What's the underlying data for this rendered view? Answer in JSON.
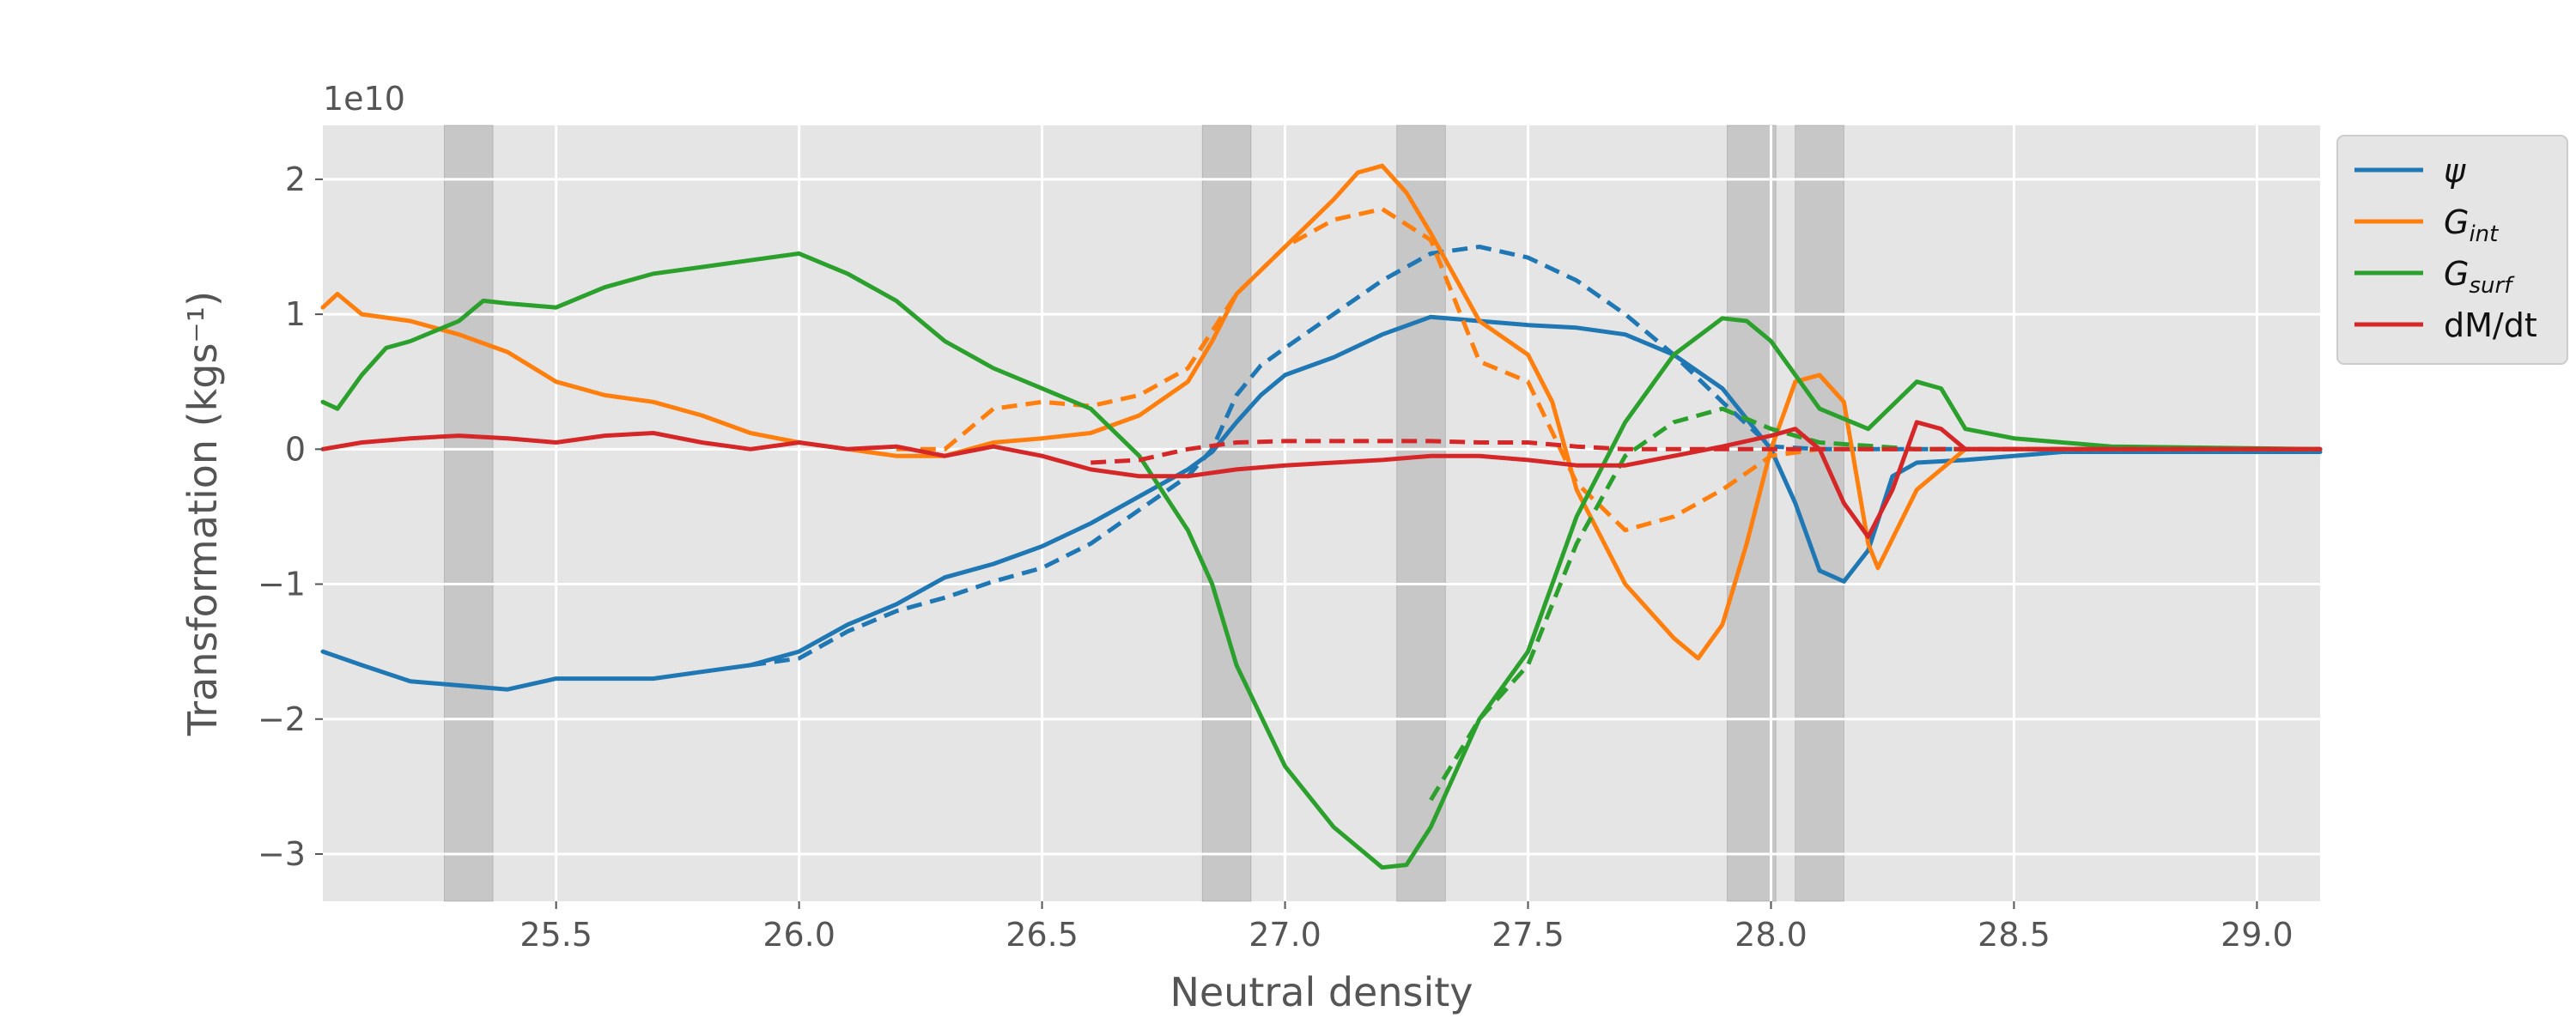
{
  "chart_data": {
    "type": "line",
    "title": "",
    "xlabel": "Neutral density",
    "ylabel": "Transformation (kgs⁻¹)",
    "offset_text": "1e10",
    "xlim": [
      25.02,
      29.13
    ],
    "ylim": [
      -3.35,
      2.4
    ],
    "x_ticks": [
      25.5,
      26.0,
      26.5,
      27.0,
      27.5,
      28.0,
      28.5,
      29.0
    ],
    "x_tick_labels": [
      "25.5",
      "26.0",
      "26.5",
      "27.0",
      "27.5",
      "28.0",
      "28.5",
      "29.0"
    ],
    "y_ticks": [
      2,
      1,
      0,
      -1,
      -2,
      -3
    ],
    "y_tick_labels": [
      "2",
      "1",
      "0",
      "−1",
      "−2",
      "−3"
    ],
    "grid": true,
    "legend_position": "outside-right",
    "shaded_bands": [
      [
        25.27,
        25.37
      ],
      [
        26.83,
        26.93
      ],
      [
        27.23,
        27.33
      ],
      [
        27.91,
        28.01
      ],
      [
        28.05,
        28.15
      ]
    ],
    "series": [
      {
        "name": "ψ",
        "color": "#1f77b4",
        "style": "solid",
        "points": [
          [
            25.02,
            -1.5
          ],
          [
            25.1,
            -1.6
          ],
          [
            25.2,
            -1.72
          ],
          [
            25.3,
            -1.75
          ],
          [
            25.4,
            -1.78
          ],
          [
            25.5,
            -1.7
          ],
          [
            25.6,
            -1.7
          ],
          [
            25.7,
            -1.7
          ],
          [
            25.8,
            -1.65
          ],
          [
            25.9,
            -1.6
          ],
          [
            26.0,
            -1.5
          ],
          [
            26.1,
            -1.3
          ],
          [
            26.2,
            -1.15
          ],
          [
            26.3,
            -0.95
          ],
          [
            26.4,
            -0.85
          ],
          [
            26.5,
            -0.72
          ],
          [
            26.6,
            -0.55
          ],
          [
            26.7,
            -0.35
          ],
          [
            26.8,
            -0.15
          ],
          [
            26.85,
            -0.02
          ],
          [
            26.9,
            0.2
          ],
          [
            26.95,
            0.4
          ],
          [
            27.0,
            0.55
          ],
          [
            27.1,
            0.68
          ],
          [
            27.2,
            0.85
          ],
          [
            27.3,
            0.98
          ],
          [
            27.4,
            0.95
          ],
          [
            27.5,
            0.92
          ],
          [
            27.6,
            0.9
          ],
          [
            27.7,
            0.85
          ],
          [
            27.8,
            0.7
          ],
          [
            27.9,
            0.45
          ],
          [
            28.0,
            0.0
          ],
          [
            28.05,
            -0.4
          ],
          [
            28.1,
            -0.9
          ],
          [
            28.15,
            -0.98
          ],
          [
            28.2,
            -0.75
          ],
          [
            28.25,
            -0.2
          ],
          [
            28.3,
            -0.1
          ],
          [
            28.4,
            -0.08
          ],
          [
            28.6,
            -0.02
          ],
          [
            29.13,
            -0.02
          ]
        ]
      },
      {
        "name": "",
        "color": "#1f77b4",
        "style": "dashed",
        "points": [
          [
            25.9,
            -1.6
          ],
          [
            26.0,
            -1.55
          ],
          [
            26.1,
            -1.35
          ],
          [
            26.2,
            -1.2
          ],
          [
            26.3,
            -1.1
          ],
          [
            26.4,
            -0.98
          ],
          [
            26.5,
            -0.88
          ],
          [
            26.6,
            -0.7
          ],
          [
            26.7,
            -0.45
          ],
          [
            26.8,
            -0.2
          ],
          [
            26.85,
            0.0
          ],
          [
            26.9,
            0.4
          ],
          [
            26.95,
            0.62
          ],
          [
            27.0,
            0.75
          ],
          [
            27.1,
            1.0
          ],
          [
            27.2,
            1.25
          ],
          [
            27.3,
            1.45
          ],
          [
            27.4,
            1.5
          ],
          [
            27.5,
            1.42
          ],
          [
            27.6,
            1.25
          ],
          [
            27.7,
            1.0
          ],
          [
            27.8,
            0.7
          ],
          [
            27.9,
            0.35
          ],
          [
            28.0,
            0.02
          ],
          [
            28.1,
            0.0
          ],
          [
            28.2,
            0.0
          ],
          [
            29.13,
            0.0
          ]
        ]
      },
      {
        "name": "Gᵢₙₜ",
        "legend_main": "G",
        "legend_sub": "int",
        "color": "#ff7f0e",
        "style": "solid",
        "points": [
          [
            25.02,
            1.05
          ],
          [
            25.05,
            1.15
          ],
          [
            25.1,
            1.0
          ],
          [
            25.2,
            0.95
          ],
          [
            25.3,
            0.85
          ],
          [
            25.4,
            0.72
          ],
          [
            25.5,
            0.5
          ],
          [
            25.6,
            0.4
          ],
          [
            25.7,
            0.35
          ],
          [
            25.8,
            0.25
          ],
          [
            25.9,
            0.12
          ],
          [
            26.0,
            0.05
          ],
          [
            26.1,
            0.0
          ],
          [
            26.2,
            -0.05
          ],
          [
            26.3,
            -0.05
          ],
          [
            26.4,
            0.05
          ],
          [
            26.5,
            0.08
          ],
          [
            26.6,
            0.12
          ],
          [
            26.7,
            0.25
          ],
          [
            26.8,
            0.5
          ],
          [
            26.85,
            0.8
          ],
          [
            26.9,
            1.15
          ],
          [
            27.0,
            1.5
          ],
          [
            27.1,
            1.85
          ],
          [
            27.15,
            2.05
          ],
          [
            27.2,
            2.1
          ],
          [
            27.25,
            1.9
          ],
          [
            27.3,
            1.6
          ],
          [
            27.4,
            0.95
          ],
          [
            27.5,
            0.7
          ],
          [
            27.55,
            0.35
          ],
          [
            27.6,
            -0.3
          ],
          [
            27.7,
            -1.0
          ],
          [
            27.8,
            -1.4
          ],
          [
            27.85,
            -1.55
          ],
          [
            27.9,
            -1.3
          ],
          [
            27.95,
            -0.7
          ],
          [
            28.0,
            0.0
          ],
          [
            28.05,
            0.5
          ],
          [
            28.1,
            0.55
          ],
          [
            28.15,
            0.35
          ],
          [
            28.2,
            -0.7
          ],
          [
            28.22,
            -0.88
          ],
          [
            28.3,
            -0.3
          ],
          [
            28.4,
            0.0
          ],
          [
            28.6,
            0.0
          ],
          [
            29.13,
            0.0
          ]
        ]
      },
      {
        "name": "",
        "color": "#ff7f0e",
        "style": "dashed",
        "points": [
          [
            26.2,
            0.0
          ],
          [
            26.3,
            0.0
          ],
          [
            26.4,
            0.3
          ],
          [
            26.5,
            0.35
          ],
          [
            26.6,
            0.32
          ],
          [
            26.7,
            0.4
          ],
          [
            26.8,
            0.6
          ],
          [
            26.9,
            1.15
          ],
          [
            27.0,
            1.5
          ],
          [
            27.1,
            1.7
          ],
          [
            27.2,
            1.78
          ],
          [
            27.3,
            1.55
          ],
          [
            27.4,
            0.65
          ],
          [
            27.5,
            0.5
          ],
          [
            27.6,
            -0.25
          ],
          [
            27.7,
            -0.6
          ],
          [
            27.8,
            -0.5
          ],
          [
            27.9,
            -0.3
          ],
          [
            28.0,
            -0.05
          ],
          [
            28.1,
            0.0
          ],
          [
            28.3,
            0.0
          ],
          [
            29.13,
            0.0
          ]
        ]
      },
      {
        "name": "Gₛᵤᵣᶠ",
        "legend_main": "G",
        "legend_sub": "surf",
        "color": "#2ca02c",
        "style": "solid",
        "points": [
          [
            25.02,
            0.35
          ],
          [
            25.05,
            0.3
          ],
          [
            25.1,
            0.55
          ],
          [
            25.15,
            0.75
          ],
          [
            25.2,
            0.8
          ],
          [
            25.3,
            0.95
          ],
          [
            25.35,
            1.1
          ],
          [
            25.4,
            1.08
          ],
          [
            25.5,
            1.05
          ],
          [
            25.6,
            1.2
          ],
          [
            25.7,
            1.3
          ],
          [
            25.8,
            1.35
          ],
          [
            25.9,
            1.4
          ],
          [
            26.0,
            1.45
          ],
          [
            26.1,
            1.3
          ],
          [
            26.2,
            1.1
          ],
          [
            26.3,
            0.8
          ],
          [
            26.4,
            0.6
          ],
          [
            26.5,
            0.45
          ],
          [
            26.6,
            0.3
          ],
          [
            26.7,
            -0.05
          ],
          [
            26.8,
            -0.6
          ],
          [
            26.85,
            -1.0
          ],
          [
            26.9,
            -1.6
          ],
          [
            27.0,
            -2.35
          ],
          [
            27.1,
            -2.8
          ],
          [
            27.2,
            -3.1
          ],
          [
            27.25,
            -3.08
          ],
          [
            27.3,
            -2.8
          ],
          [
            27.4,
            -2.0
          ],
          [
            27.5,
            -1.5
          ],
          [
            27.6,
            -0.5
          ],
          [
            27.7,
            0.2
          ],
          [
            27.8,
            0.7
          ],
          [
            27.9,
            0.97
          ],
          [
            27.95,
            0.95
          ],
          [
            28.0,
            0.8
          ],
          [
            28.1,
            0.3
          ],
          [
            28.2,
            0.15
          ],
          [
            28.3,
            0.5
          ],
          [
            28.35,
            0.45
          ],
          [
            28.4,
            0.15
          ],
          [
            28.5,
            0.08
          ],
          [
            28.7,
            0.02
          ],
          [
            29.13,
            0.0
          ]
        ]
      },
      {
        "name": "",
        "color": "#2ca02c",
        "style": "dashed",
        "points": [
          [
            27.3,
            -2.6
          ],
          [
            27.4,
            -2.0
          ],
          [
            27.5,
            -1.6
          ],
          [
            27.6,
            -0.7
          ],
          [
            27.7,
            -0.05
          ],
          [
            27.8,
            0.2
          ],
          [
            27.9,
            0.3
          ],
          [
            28.0,
            0.15
          ],
          [
            28.1,
            0.05
          ],
          [
            28.3,
            0.0
          ],
          [
            28.6,
            0.0
          ],
          [
            29.13,
            0.0
          ]
        ]
      },
      {
        "name": "dM/dt",
        "color": "#d62728",
        "style": "solid",
        "points": [
          [
            25.02,
            0.0
          ],
          [
            25.1,
            0.05
          ],
          [
            25.2,
            0.08
          ],
          [
            25.3,
            0.1
          ],
          [
            25.4,
            0.08
          ],
          [
            25.5,
            0.05
          ],
          [
            25.6,
            0.1
          ],
          [
            25.7,
            0.12
          ],
          [
            25.8,
            0.05
          ],
          [
            25.9,
            0.0
          ],
          [
            26.0,
            0.05
          ],
          [
            26.1,
            0.0
          ],
          [
            26.2,
            0.02
          ],
          [
            26.3,
            -0.05
          ],
          [
            26.4,
            0.02
          ],
          [
            26.5,
            -0.05
          ],
          [
            26.6,
            -0.15
          ],
          [
            26.7,
            -0.2
          ],
          [
            26.8,
            -0.2
          ],
          [
            26.9,
            -0.15
          ],
          [
            27.0,
            -0.12
          ],
          [
            27.1,
            -0.1
          ],
          [
            27.2,
            -0.08
          ],
          [
            27.3,
            -0.05
          ],
          [
            27.4,
            -0.05
          ],
          [
            27.5,
            -0.08
          ],
          [
            27.6,
            -0.12
          ],
          [
            27.7,
            -0.12
          ],
          [
            27.8,
            -0.05
          ],
          [
            27.9,
            0.02
          ],
          [
            28.0,
            0.1
          ],
          [
            28.05,
            0.15
          ],
          [
            28.1,
            0.0
          ],
          [
            28.15,
            -0.4
          ],
          [
            28.2,
            -0.65
          ],
          [
            28.25,
            -0.3
          ],
          [
            28.3,
            0.2
          ],
          [
            28.35,
            0.15
          ],
          [
            28.4,
            0.0
          ],
          [
            28.6,
            0.0
          ],
          [
            29.13,
            0.0
          ]
        ]
      },
      {
        "name": "",
        "color": "#d62728",
        "style": "dashed",
        "points": [
          [
            26.6,
            -0.1
          ],
          [
            26.7,
            -0.08
          ],
          [
            26.8,
            0.0
          ],
          [
            26.9,
            0.05
          ],
          [
            27.0,
            0.06
          ],
          [
            27.1,
            0.06
          ],
          [
            27.2,
            0.06
          ],
          [
            27.3,
            0.06
          ],
          [
            27.4,
            0.05
          ],
          [
            27.5,
            0.05
          ],
          [
            27.6,
            0.02
          ],
          [
            27.7,
            0.0
          ],
          [
            27.8,
            0.0
          ],
          [
            28.0,
            0.0
          ],
          [
            28.2,
            0.0
          ],
          [
            29.13,
            0.0
          ]
        ]
      }
    ]
  }
}
